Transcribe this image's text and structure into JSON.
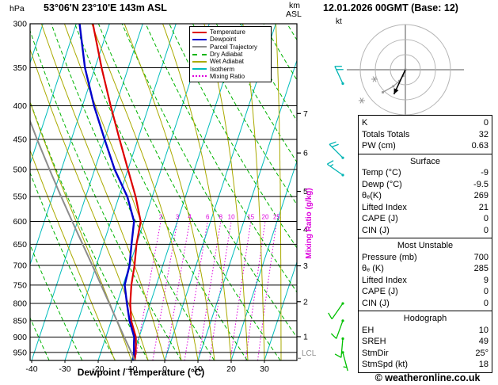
{
  "header": {
    "pressure_unit": "hPa",
    "station": "53°06'N 23°10'E 143m ASL",
    "km_label": "km",
    "asl_label": "ASL",
    "datetime": "12.01.2026 00GMT (Base: 12)"
  },
  "axes": {
    "x_label": "Dewpoint / Temperature (°C)",
    "mixing_ratio_label": "Mixing Ratio (g/kg)",
    "lcl_label": "LCL"
  },
  "legend": {
    "items": [
      {
        "label": "Temperature",
        "color": "#dd0000",
        "style": "solid"
      },
      {
        "label": "Dewpoint",
        "color": "#0000cc",
        "style": "solid"
      },
      {
        "label": "Parcel Trajectory",
        "color": "#8c8c8c",
        "style": "solid"
      },
      {
        "label": "Dry Adiabat",
        "color": "#00b400",
        "style": "dashed"
      },
      {
        "label": "Wet Adiabat",
        "color": "#aaaa00",
        "style": "solid"
      },
      {
        "label": "Isotherm",
        "color": "#00bcbc",
        "style": "solid"
      },
      {
        "label": "Mixing Ratio",
        "color": "#dd00dd",
        "style": "dotted"
      }
    ]
  },
  "chart_data": {
    "type": "line",
    "subtype": "skew-t-log-p-sounding",
    "pressure_axis_hPa": [
      300,
      350,
      400,
      450,
      500,
      550,
      600,
      650,
      700,
      750,
      800,
      850,
      900,
      950
    ],
    "pressure_range_hPa": [
      977,
      300
    ],
    "temp_axis_C": [
      -40,
      -30,
      -20,
      -10,
      0,
      10,
      20,
      30
    ],
    "km_ticks": [
      {
        "km": 1,
        "p_hPa": 899
      },
      {
        "km": 2,
        "p_hPa": 795
      },
      {
        "km": 3,
        "p_hPa": 701
      },
      {
        "km": 4,
        "p_hPa": 617
      },
      {
        "km": 5,
        "p_hPa": 540
      },
      {
        "km": 6,
        "p_hPa": 472
      },
      {
        "km": 7,
        "p_hPa": 411
      }
    ],
    "series": [
      {
        "name": "Temperature",
        "color": "#dd0000",
        "width": 2.2,
        "points_p_T": [
          [
            977,
            -9
          ],
          [
            950,
            -9.5
          ],
          [
            925,
            -10.2
          ],
          [
            900,
            -11
          ],
          [
            850,
            -14
          ],
          [
            800,
            -16
          ],
          [
            750,
            -17.5
          ],
          [
            700,
            -18.5
          ],
          [
            650,
            -20
          ],
          [
            600,
            -21
          ],
          [
            550,
            -25
          ],
          [
            500,
            -30
          ],
          [
            450,
            -35.5
          ],
          [
            400,
            -41.5
          ],
          [
            350,
            -48
          ],
          [
            300,
            -55
          ]
        ]
      },
      {
        "name": "Dewpoint",
        "color": "#0000cc",
        "width": 2.4,
        "points_p_T": [
          [
            977,
            -9.5
          ],
          [
            950,
            -10
          ],
          [
            925,
            -10.8
          ],
          [
            900,
            -11.5
          ],
          [
            850,
            -14.5
          ],
          [
            800,
            -17
          ],
          [
            750,
            -19.5
          ],
          [
            700,
            -20
          ],
          [
            650,
            -21.5
          ],
          [
            600,
            -23
          ],
          [
            550,
            -27.5
          ],
          [
            500,
            -34
          ],
          [
            450,
            -40
          ],
          [
            400,
            -46.5
          ],
          [
            350,
            -53
          ],
          [
            300,
            -59
          ]
        ]
      },
      {
        "name": "Parcel Trajectory",
        "color": "#8c8c8c",
        "width": 2,
        "points_p_T": [
          [
            977,
            -9
          ],
          [
            950,
            -10.8
          ],
          [
            900,
            -14.5
          ],
          [
            850,
            -18.3
          ],
          [
            800,
            -22.3
          ],
          [
            750,
            -26.6
          ],
          [
            700,
            -31.2
          ],
          [
            650,
            -36.2
          ],
          [
            600,
            -41.6
          ],
          [
            550,
            -47.4
          ],
          [
            500,
            -53.6
          ],
          [
            450,
            -60.3
          ],
          [
            400,
            -67.5
          ]
        ]
      }
    ],
    "isotherms_C": {
      "min": -100,
      "max": 40,
      "step": 10,
      "color": "#00bcbc"
    },
    "dry_adiabats_theta_K": {
      "min": 240,
      "max": 400,
      "step": 10,
      "color": "#00b400"
    },
    "wet_adiabats_start_C": [
      -15,
      -10,
      -5,
      0,
      5,
      10,
      15,
      20,
      25,
      30,
      35
    ],
    "wet_adiabat_color": "#aaaa00",
    "mixing_ratio_g_kg": [
      2,
      3,
      4,
      6,
      8,
      10,
      15,
      20,
      25
    ],
    "mixing_ratio_color": "#dd00dd",
    "wind_barbs": [
      {
        "p_hPa": 370,
        "dir_deg": 335,
        "speed_kt": 20
      },
      {
        "p_hPa": 480,
        "dir_deg": 315,
        "speed_kt": 20
      },
      {
        "p_hPa": 510,
        "dir_deg": 305,
        "speed_kt": 15
      },
      {
        "p_hPa": 800,
        "dir_deg": 215,
        "speed_kt": 10
      },
      {
        "p_hPa": 850,
        "dir_deg": 200,
        "speed_kt": 10
      },
      {
        "p_hPa": 905,
        "dir_deg": 185,
        "speed_kt": 10
      },
      {
        "p_hPa": 950,
        "dir_deg": 165,
        "speed_kt": 5
      }
    ],
    "barb_colors": {
      "upper": "#00b4b4",
      "lower": "#00c000"
    }
  },
  "hodograph": {
    "unit_label": "kt",
    "rings_kt": [
      10,
      20,
      30
    ],
    "storm_dir_deg": 25,
    "storm_speed_kt": 18,
    "trace_kt": [
      [
        0,
        0
      ],
      [
        -1.5,
        4
      ],
      [
        -4,
        7.5
      ],
      [
        -8,
        11
      ],
      [
        -15,
        15
      ]
    ],
    "mark_offsets_kt": [
      [
        -29,
        20.5
      ],
      [
        -20.5,
        6.3
      ]
    ]
  },
  "panel": {
    "indices": {
      "rows": [
        [
          "K",
          "0"
        ],
        [
          "Totals Totals",
          "32"
        ],
        [
          "PW (cm)",
          "0.63"
        ]
      ]
    },
    "sections": [
      {
        "title": "Surface",
        "rows": [
          [
            "Temp (°C)",
            "-9"
          ],
          [
            "Dewp (°C)",
            "-9.5"
          ],
          [
            "θₑ(K)",
            "269"
          ],
          [
            "Lifted Index",
            "21"
          ],
          [
            "CAPE (J)",
            "0"
          ],
          [
            "CIN (J)",
            "0"
          ]
        ]
      },
      {
        "title": "Most Unstable",
        "rows": [
          [
            "Pressure (mb)",
            "700"
          ],
          [
            "θₑ (K)",
            "285"
          ],
          [
            "Lifted Index",
            "9"
          ],
          [
            "CAPE (J)",
            "0"
          ],
          [
            "CIN (J)",
            "0"
          ]
        ]
      },
      {
        "title": "Hodograph",
        "rows": [
          [
            "EH",
            "10"
          ],
          [
            "SREH",
            "49"
          ],
          [
            "StmDir",
            "25°"
          ],
          [
            "StmSpd (kt)",
            "18"
          ]
        ]
      }
    ]
  },
  "footer": {
    "copyright": "© weatheronline.co.uk"
  }
}
